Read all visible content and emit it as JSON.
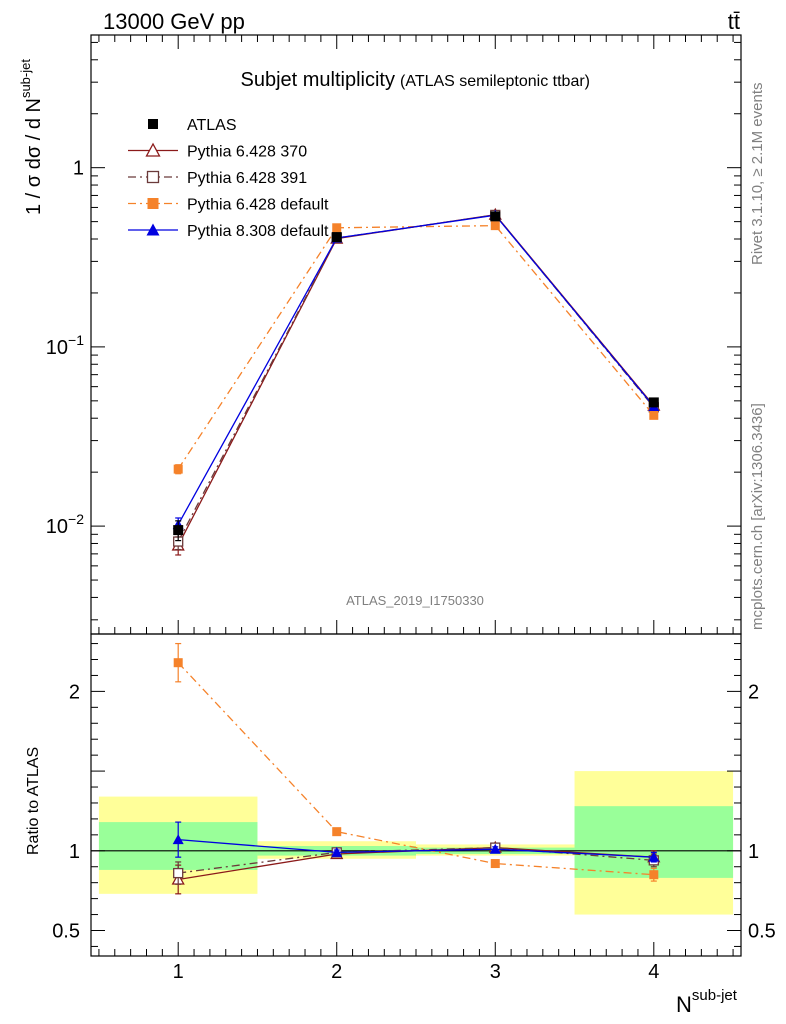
{
  "header": {
    "energy_label": "13000 GeV pp",
    "process_label": "tt̄"
  },
  "side_text": {
    "rivet": "Rivet 3.1.10, ≥ 2.1M events",
    "mcplots": "mcplots.cern.ch [arXiv:1306.3436]"
  },
  "chart_data": [
    {
      "type": "line",
      "title": "Subjet multiplicity",
      "subtitle": "(ATLAS semileptonic ttbar)",
      "analysis_id": "ATLAS_2019_I1750330",
      "ylabel_main": "1 / σ dσ / d N",
      "ylabel_sup": "sub-jet",
      "y_scale": "log",
      "ylim": [
        0.0025,
        5.5
      ],
      "xlim": [
        0.45,
        4.55
      ],
      "x": [
        1,
        2,
        3,
        4
      ],
      "y_ticks": [
        {
          "value": 0.01,
          "base": "10",
          "exp": "−2"
        },
        {
          "value": 0.1,
          "base": "10",
          "exp": "−1"
        },
        {
          "value": 1,
          "base": "1",
          "exp": ""
        }
      ],
      "legend_position": "top-left",
      "series": [
        {
          "name": "ATLAS",
          "color": "#000000",
          "marker": "filled-square",
          "line": "none",
          "values": [
            0.0095,
            0.41,
            0.535,
            0.049
          ],
          "errors": [
            0.0012,
            0.008,
            0.01,
            0.0025
          ]
        },
        {
          "name": "Pythia 6.428 370",
          "color": "#8b1a1a",
          "marker": "open-triangle",
          "line": "solid",
          "values": [
            0.0078,
            0.402,
            0.547,
            0.047
          ],
          "errors": [
            0.0009,
            0.006,
            0.008,
            0.002
          ]
        },
        {
          "name": "Pythia 6.428 391",
          "color": "#6b3a3a",
          "marker": "open-square",
          "line": "dash-dot",
          "values": [
            0.0082,
            0.405,
            0.545,
            0.046
          ],
          "errors": [
            0.0008,
            0.006,
            0.008,
            0.002
          ]
        },
        {
          "name": "Pythia 6.428 default",
          "color": "#f5822a",
          "marker": "filled-square",
          "line": "dash-dot",
          "values": [
            0.0208,
            0.462,
            0.475,
            0.0415
          ],
          "errors": [
            0.0012,
            0.006,
            0.007,
            0.0015
          ]
        },
        {
          "name": "Pythia 8.308 default",
          "color": "#0000e0",
          "marker": "filled-triangle",
          "line": "solid",
          "values": [
            0.0102,
            0.405,
            0.543,
            0.0465
          ],
          "errors": [
            0.0009,
            0.006,
            0.008,
            0.0015
          ]
        }
      ]
    },
    {
      "type": "line",
      "ylabel": "Ratio to ATLAS",
      "xlabel_main": "N",
      "xlabel_sup": "sub-jet",
      "ylim": [
        0.34,
        2.36
      ],
      "xlim": [
        0.45,
        4.55
      ],
      "x_ticks": [
        "1",
        "2",
        "3",
        "4"
      ],
      "y_ticks": [
        {
          "value": 0.5,
          "label": "0.5"
        },
        {
          "value": 1,
          "label": "1"
        },
        {
          "value": 2,
          "label": "2"
        }
      ],
      "uncertainty_bands": {
        "bins": [
          [
            0.5,
            1.5
          ],
          [
            1.5,
            2.5
          ],
          [
            2.5,
            3.5
          ],
          [
            3.5,
            4.5
          ]
        ],
        "stat_green": [
          [
            0.88,
            1.18
          ],
          [
            0.97,
            1.03
          ],
          [
            0.98,
            1.02
          ],
          [
            0.83,
            1.28
          ]
        ],
        "total_yellow": [
          [
            0.73,
            1.34
          ],
          [
            0.95,
            1.06
          ],
          [
            0.97,
            1.04
          ],
          [
            0.6,
            1.5
          ]
        ],
        "green_color": "#99ff99",
        "yellow_color": "#ffff99"
      },
      "reference_line": 1,
      "series": [
        {
          "name": "Pythia 6.428 370",
          "color": "#8b1a1a",
          "marker": "open-triangle",
          "line": "solid",
          "values": [
            0.82,
            0.98,
            1.02,
            0.96
          ],
          "errors": [
            0.09,
            0.015,
            0.015,
            0.04
          ]
        },
        {
          "name": "Pythia 6.428 391",
          "color": "#6b3a3a",
          "marker": "open-square",
          "line": "dash-dot",
          "values": [
            0.86,
            0.99,
            1.02,
            0.94
          ],
          "errors": [
            0.07,
            0.015,
            0.015,
            0.04
          ]
        },
        {
          "name": "Pythia 6.428 default",
          "color": "#f5822a",
          "marker": "filled-square",
          "line": "dash-dot",
          "values": [
            2.18,
            1.12,
            0.92,
            0.85
          ],
          "errors": [
            0.12,
            0.015,
            0.015,
            0.04
          ]
        },
        {
          "name": "Pythia 8.308 default",
          "color": "#0000e0",
          "marker": "filled-triangle",
          "line": "solid",
          "values": [
            1.07,
            0.99,
            1.01,
            0.96
          ],
          "errors": [
            0.11,
            0.015,
            0.015,
            0.03
          ]
        }
      ]
    }
  ]
}
